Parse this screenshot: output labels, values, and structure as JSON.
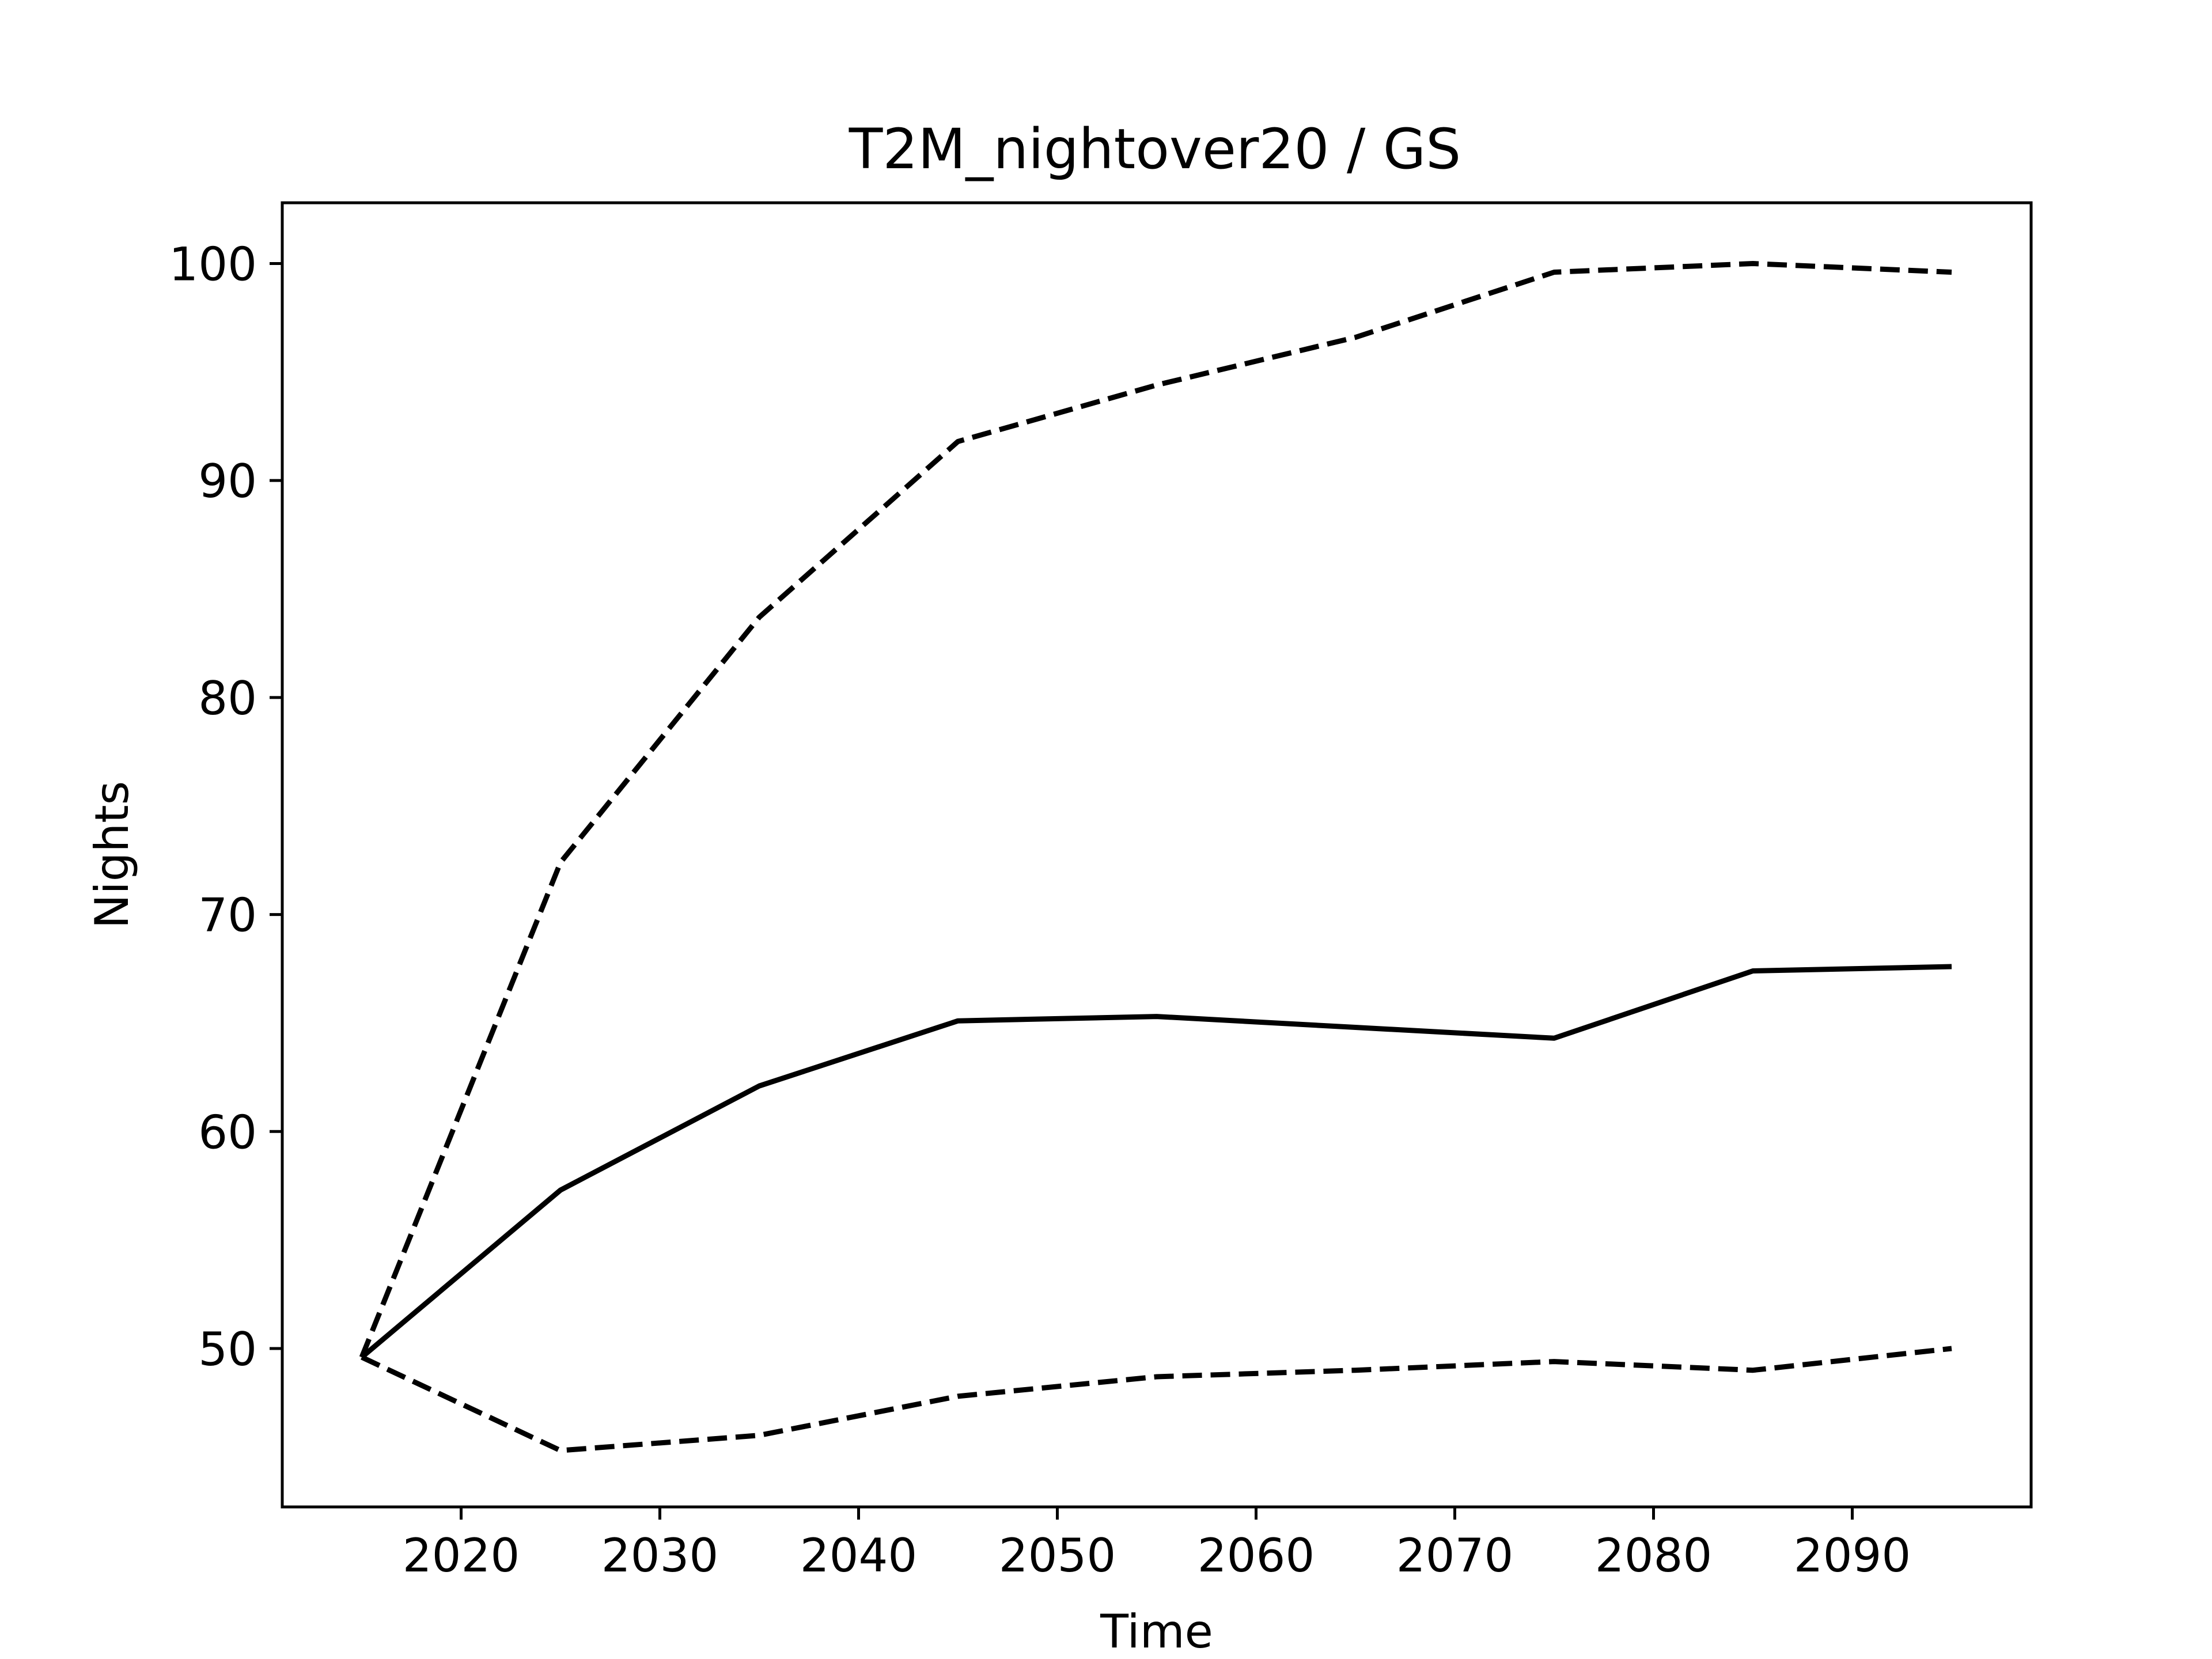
{
  "chart_data": {
    "type": "line",
    "title": "T2M_nightover20 / GS",
    "xlabel": "Time",
    "ylabel": "Nights",
    "xlim": [
      2011,
      2099
    ],
    "ylim": [
      42.7,
      102.8
    ],
    "xticks": [
      2020,
      2030,
      2040,
      2050,
      2060,
      2070,
      2080,
      2090
    ],
    "yticks": [
      50,
      60,
      70,
      80,
      90,
      100
    ],
    "grid": false,
    "x": [
      2015,
      2025,
      2035,
      2045,
      2055,
      2065,
      2075,
      2085,
      2095
    ],
    "series": [
      {
        "style": "solid",
        "color": "#000000",
        "values": [
          49.6,
          57.3,
          62.1,
          65.1,
          65.3,
          64.8,
          64.3,
          67.4,
          67.6
        ]
      },
      {
        "style": "dashed",
        "color": "#000000",
        "values": [
          49.6,
          72.4,
          83.7,
          91.8,
          94.4,
          96.6,
          99.6,
          100.0,
          99.6
        ]
      },
      {
        "style": "dashed",
        "color": "#000000",
        "values": [
          49.6,
          45.3,
          46.0,
          47.8,
          48.7,
          49.0,
          49.4,
          49.0,
          50.0
        ]
      }
    ]
  }
}
